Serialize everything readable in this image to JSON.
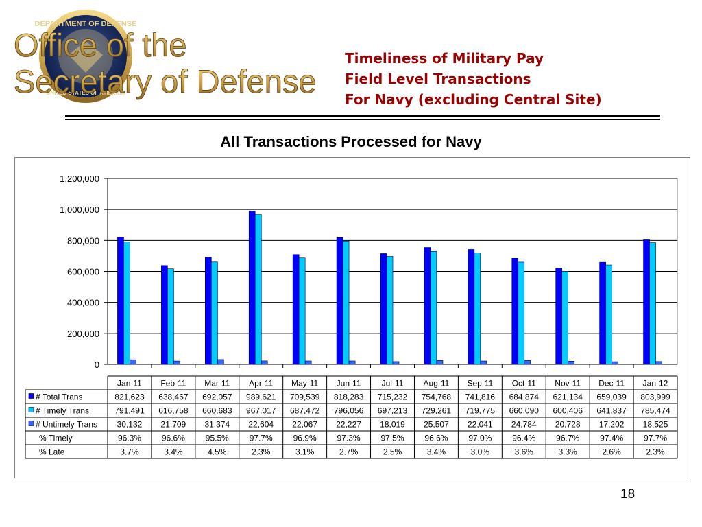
{
  "header": {
    "logo_text_line1": "Office of the",
    "logo_text_line2": "Secretary of Defense",
    "seal_text_top": "DEPARTMENT OF DEFENSE",
    "seal_text_bottom": "UNITED STATES OF AMERICA",
    "title_line1": "Timeliness of Military Pay",
    "title_line2": "Field Level Transactions",
    "title_line3": "For Navy (excluding Central Site)"
  },
  "page_number": "18",
  "colors": {
    "title_red": "#990000",
    "total_trans": "#0000ff",
    "timely_trans": "#00ccff",
    "untimely_trans": "#3366ff"
  },
  "chart_data": {
    "type": "bar",
    "title": "All Transactions Processed for Navy",
    "xlabel": "",
    "ylabel": "",
    "ylim": [
      0,
      1200000
    ],
    "yticks": [
      "0",
      "200,000",
      "400,000",
      "600,000",
      "800,000",
      "1,000,000",
      "1,200,000"
    ],
    "grid": true,
    "legend": "data-table",
    "categories": [
      "Jan-11",
      "Feb-11",
      "Mar-11",
      "Apr-11",
      "May-11",
      "Jun-11",
      "Jul-11",
      "Aug-11",
      "Sep-11",
      "Oct-11",
      "Nov-11",
      "Dec-11",
      "Jan-12"
    ],
    "series": [
      {
        "name": "# Total Trans",
        "values": [
          821623,
          638467,
          692057,
          989621,
          709539,
          818283,
          715232,
          754768,
          741816,
          684874,
          621134,
          659039,
          803999
        ],
        "labels": [
          "821,623",
          "638,467",
          "692,057",
          "989,621",
          "709,539",
          "818,283",
          "715,232",
          "754,768",
          "741,816",
          "684,874",
          "621,134",
          "659,039",
          "803,999"
        ]
      },
      {
        "name": "# Timely Trans",
        "values": [
          791491,
          616758,
          660683,
          967017,
          687472,
          796056,
          697213,
          729261,
          719775,
          660090,
          600406,
          641837,
          785474
        ],
        "labels": [
          "791,491",
          "616,758",
          "660,683",
          "967,017",
          "687,472",
          "796,056",
          "697,213",
          "729,261",
          "719,775",
          "660,090",
          "600,406",
          "641,837",
          "785,474"
        ]
      },
      {
        "name": "# Untimely Trans",
        "values": [
          30132,
          21709,
          31374,
          22604,
          22067,
          22227,
          18019,
          25507,
          22041,
          24784,
          20728,
          17202,
          18525
        ],
        "labels": [
          "30,132",
          "21,709",
          "31,374",
          "22,604",
          "22,067",
          "22,227",
          "18,019",
          "25,507",
          "22,041",
          "24,784",
          "20,728",
          "17,202",
          "18,525"
        ]
      }
    ],
    "extra_rows": [
      {
        "name": "% Timely",
        "labels": [
          "96.3%",
          "96.6%",
          "95.5%",
          "97.7%",
          "96.9%",
          "97.3%",
          "97.5%",
          "96.6%",
          "97.0%",
          "96.4%",
          "96.7%",
          "97.4%",
          "97.7%"
        ]
      },
      {
        "name": "% Late",
        "labels": [
          "3.7%",
          "3.4%",
          "4.5%",
          "2.3%",
          "3.1%",
          "2.7%",
          "2.5%",
          "3.4%",
          "3.0%",
          "3.6%",
          "3.3%",
          "2.6%",
          "2.3%"
        ]
      }
    ]
  }
}
